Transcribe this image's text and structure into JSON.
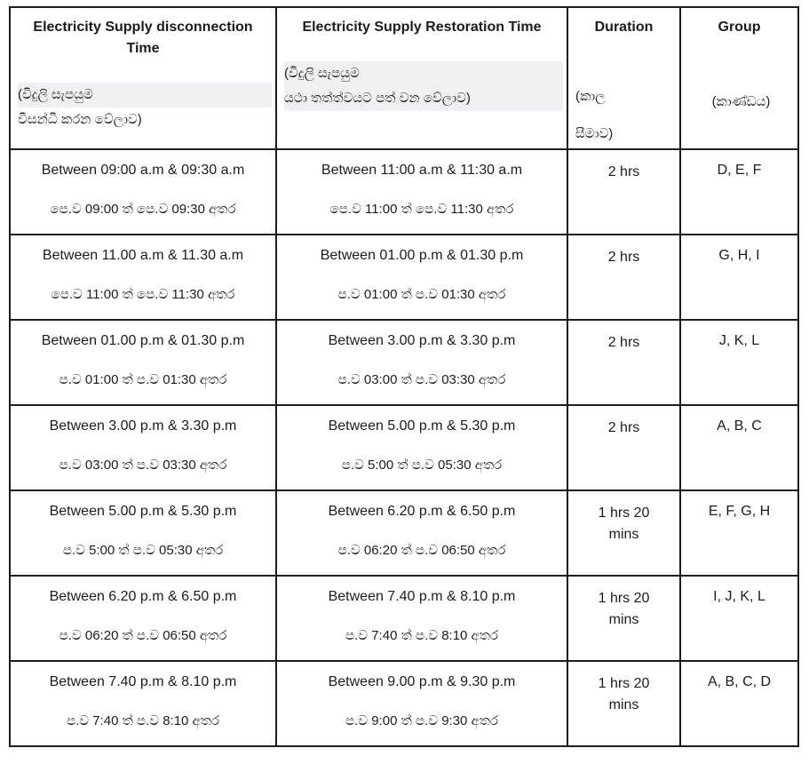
{
  "table": {
    "headers": {
      "disconnection": {
        "en": "Electricity Supply disconnection Time",
        "si_line1": "(විදුලි සැපයුම",
        "si_line2": "විසන්ධි කරන වේලාව)"
      },
      "restoration": {
        "en": "Electricity Supply Restoration Time",
        "si_line1": "(විදුලි සැපයුම",
        "si_line2": "යථා තත්ත්වයට පත් වන වේලාව)"
      },
      "duration": {
        "en": "Duration",
        "si_line1": "(කාල",
        "si_line2": "සීමාව)"
      },
      "group": {
        "en": "Group",
        "si": "(කාණ්ඩය)"
      }
    },
    "rows": [
      {
        "disconnect_en": "Between 09:00 a.m & 09:30 a.m",
        "disconnect_si": "පෙ.ව 09:00 ත් පෙ.ව 09:30 අතර",
        "restore_en": "Between 11:00 a.m & 11:30 a.m",
        "restore_si": "පෙ.ව 11:00 ත් පෙ.ව 11:30 අතර",
        "duration": "2 hrs",
        "group": "D, E, F"
      },
      {
        "disconnect_en": "Between 11.00 a.m & 11.30 a.m",
        "disconnect_si": "පෙ.ව 11:00 ත් පෙ.ව 11:30 අතර",
        "restore_en": "Between 01.00 p.m & 01.30 p.m",
        "restore_si": "ප.ව 01:00 ත් ප.ව 01:30 අතර",
        "duration": "2 hrs",
        "group": "G, H, I"
      },
      {
        "disconnect_en": "Between 01.00 p.m & 01.30 p.m",
        "disconnect_si": "ප.ව 01:00 ත් ප.ව 01:30 අතර",
        "restore_en": "Between 3.00 p.m & 3.30 p.m",
        "restore_si": "ප.ව 03:00 ත් ප.ව 03:30 අතර",
        "duration": "2 hrs",
        "group": "J, K, L"
      },
      {
        "disconnect_en": "Between 3.00 p.m & 3.30 p.m",
        "disconnect_si": "ප.ව 03:00 ත් ප.ව 03:30 අතර",
        "restore_en": "Between 5.00 p.m & 5.30 p.m",
        "restore_si": "ප.ව 5:00 ත් ප.ව 05:30 අතර",
        "duration": "2 hrs",
        "group": "A, B, C"
      },
      {
        "disconnect_en": "Between 5.00 p.m & 5.30 p.m",
        "disconnect_si": "ප.ව 5:00 ත් ප.ව 05:30 අතර",
        "restore_en": "Between 6.20 p.m & 6.50 p.m",
        "restore_si": "ප.ව 06:20 ත් ප.ව 06:50 අතර",
        "duration": "1 hrs 20 mins",
        "group": "E, F, G, H"
      },
      {
        "disconnect_en": "Between 6.20 p.m & 6.50 p.m",
        "disconnect_si": "ප.ව 06:20 ත් ප.ව 06:50 අතර",
        "restore_en": "Between 7.40 p.m & 8.10 p.m",
        "restore_si": "ප.ව 7:40 ත් ප.ව 8:10 අතර",
        "duration": "1 hrs 20 mins",
        "group": "I, J, K, L"
      },
      {
        "disconnect_en": "Between 7.40 p.m & 8.10 p.m",
        "disconnect_si": "ප.ව 7:40 ත් ප.ව 8:10 අතර",
        "restore_en": "Between 9.00 p.m & 9.30 p.m",
        "restore_si": "ප.ව 9:00 ත් ප.ව 9:30 අතර",
        "duration": "1 hrs 20 mins",
        "group": "A, B, C, D"
      }
    ]
  },
  "colors": {
    "border": "#1c1c1c",
    "text": "#1c1c1c",
    "highlight": "#eef0f3"
  }
}
